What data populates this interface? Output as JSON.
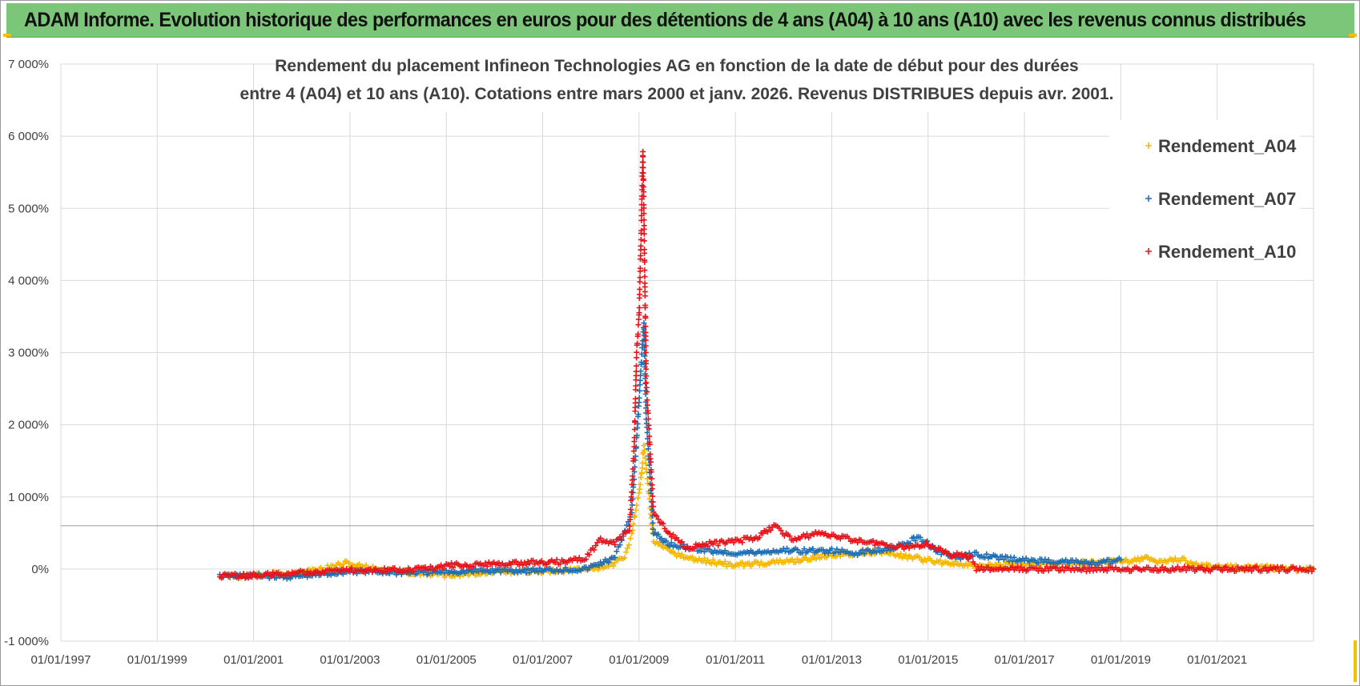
{
  "banner": {
    "title": "ADAM Informe. Evolution historique des performances en euros pour des détentions de 4 ans (A04) à 10 ans (A10) avec les revenus connus distribués",
    "background": "#7cc67a"
  },
  "chart_data": {
    "type": "scatter",
    "title_line1": "Rendement du placement Infineon Technologies AG en fonction de la date de début pour des durées",
    "title_line2": "entre 4 (A04) et 10 ans (A10). Cotations entre mars 2000 et janv. 2026. Revenus DISTRIBUES depuis avr. 2001.",
    "xlabel": "",
    "ylabel": "",
    "xlim": [
      1997.0,
      2023.0
    ],
    "ylim": [
      -1000,
      7000
    ],
    "y_ticks": [
      -1000,
      0,
      1000,
      2000,
      3000,
      4000,
      5000,
      6000,
      7000
    ],
    "y_tick_labels": [
      "-1 000%",
      "0%",
      "1 000%",
      "2 000%",
      "3 000%",
      "4 000%",
      "5 000%",
      "6 000%",
      "7 000%"
    ],
    "x_ticks": [
      1997,
      1999,
      2001,
      2003,
      2005,
      2007,
      2009,
      2011,
      2013,
      2015,
      2017,
      2019,
      2021
    ],
    "x_tick_labels": [
      "01/01/1997",
      "01/01/1999",
      "01/01/2001",
      "01/01/2003",
      "01/01/2005",
      "01/01/2007",
      "01/01/2009",
      "01/01/2011",
      "01/01/2013",
      "01/01/2015",
      "01/01/2017",
      "01/01/2019",
      "01/01/2021"
    ],
    "reference_line_y": 600,
    "legend_position": "top-right",
    "series": [
      {
        "name": "Rendement_A04",
        "color": "#f5b800",
        "x": [
          2000.3,
          2001.0,
          2001.8,
          2002.5,
          2002.9,
          2003.3,
          2004.0,
          2004.6,
          2005.0,
          2005.6,
          2006.2,
          2006.8,
          2007.4,
          2007.9,
          2008.4,
          2008.7,
          2008.85,
          2008.95,
          2009.0,
          2009.05,
          2009.1,
          2009.15,
          2009.3,
          2009.6,
          2010.0,
          2010.5,
          2011.0,
          2011.5,
          2012.0,
          2012.5,
          2013.0,
          2013.5,
          2014.0,
          2014.5,
          2015.0,
          2015.5,
          2016.0,
          2016.5,
          2017.0,
          2017.5,
          2018.0,
          2018.5,
          2019.0,
          2019.5,
          2019.8,
          2020.2,
          2020.6,
          2021.0,
          2021.5,
          2022.0,
          2022.5,
          2023.0
        ],
        "y": [
          -100,
          -90,
          -60,
          10,
          80,
          30,
          -40,
          -60,
          -90,
          -60,
          -40,
          -30,
          -20,
          -10,
          50,
          150,
          500,
          900,
          1050,
          1300,
          1700,
          1400,
          400,
          250,
          150,
          100,
          50,
          80,
          100,
          140,
          200,
          220,
          240,
          180,
          120,
          80,
          30,
          60,
          80,
          90,
          80,
          100,
          110,
          150,
          100,
          140,
          60,
          30,
          20,
          20,
          0,
          0
        ]
      },
      {
        "name": "Rendement_A07",
        "color": "#1f6fb4",
        "x": [
          2000.3,
          2001.0,
          2001.8,
          2002.5,
          2003.0,
          2003.5,
          2004.0,
          2004.6,
          2005.0,
          2005.6,
          2006.2,
          2006.8,
          2007.4,
          2007.9,
          2008.2,
          2008.5,
          2008.85,
          2008.95,
          2009.0,
          2009.05,
          2009.1,
          2009.15,
          2009.3,
          2009.6,
          2010.0,
          2010.5,
          2011.0,
          2011.5,
          2012.0,
          2012.5,
          2013.0,
          2013.5,
          2014.0,
          2014.5,
          2014.8,
          2015.2,
          2015.6,
          2016.0,
          2016.5,
          2017.0,
          2017.5,
          2018.0,
          2018.5,
          2019.0
        ],
        "y": [
          -100,
          -90,
          -110,
          -70,
          -30,
          -40,
          -50,
          -50,
          -40,
          -30,
          -20,
          -20,
          -10,
          0,
          80,
          150,
          800,
          1800,
          2300,
          2900,
          3400,
          2100,
          500,
          350,
          300,
          250,
          220,
          230,
          260,
          250,
          250,
          220,
          270,
          330,
          450,
          250,
          150,
          210,
          150,
          120,
          110,
          100,
          70,
          130
        ]
      },
      {
        "name": "Rendement_A10",
        "color": "#e8141b",
        "x": [
          2000.3,
          2001.0,
          2001.8,
          2002.5,
          2003.0,
          2003.5,
          2004.0,
          2004.6,
          2005.0,
          2005.6,
          2006.2,
          2006.8,
          2007.4,
          2007.9,
          2008.2,
          2008.5,
          2008.8,
          2008.9,
          2008.95,
          2009.0,
          2009.05,
          2009.08,
          2009.1,
          2009.15,
          2009.3,
          2009.6,
          2010.0,
          2010.5,
          2011.0,
          2011.5,
          2011.8,
          2012.2,
          2012.7,
          2013.0,
          2013.5,
          2014.0,
          2014.5,
          2015.0,
          2015.4,
          2015.6,
          2015.9,
          2016.0,
          2017.0,
          2018.0,
          2019.0,
          2020.0,
          2021.0,
          2022.0,
          2023.0
        ],
        "y": [
          -100,
          -90,
          -60,
          -20,
          -20,
          -10,
          -20,
          0,
          50,
          60,
          80,
          90,
          100,
          150,
          400,
          350,
          550,
          1700,
          3000,
          3500,
          4800,
          5800,
          5000,
          2600,
          800,
          500,
          300,
          350,
          380,
          450,
          600,
          400,
          500,
          480,
          400,
          350,
          300,
          350,
          200,
          200,
          150,
          0,
          0,
          0,
          0,
          0,
          0,
          0,
          0
        ]
      }
    ]
  }
}
